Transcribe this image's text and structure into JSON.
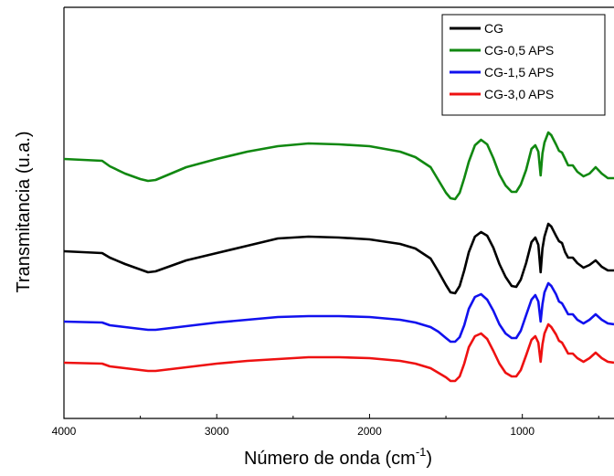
{
  "chart_data": {
    "type": "line",
    "title": "",
    "xlabel": "Número de onda (cm",
    "xlabel_sup": "-1",
    "xlabel_close": ")",
    "ylabel": "Transmitancia (u.a.)",
    "xlim": [
      4000,
      400
    ],
    "x_reversed": true,
    "x_ticks": [
      4000,
      3000,
      2000,
      1000
    ],
    "x_tick_labels": [
      "4000",
      "3000",
      "2000",
      "1000"
    ],
    "y_ticks_shown": false,
    "grid": false,
    "legend_position": "top-right",
    "series": [
      {
        "name": "CG",
        "color": "#000000",
        "points": [
          [
            4000,
            275
          ],
          [
            3750,
            277
          ],
          [
            3700,
            282
          ],
          [
            3600,
            289
          ],
          [
            3500,
            295
          ],
          [
            3450,
            298
          ],
          [
            3400,
            297
          ],
          [
            3300,
            291
          ],
          [
            3200,
            285
          ],
          [
            3000,
            277
          ],
          [
            2800,
            269
          ],
          [
            2600,
            261
          ],
          [
            2400,
            259
          ],
          [
            2200,
            260
          ],
          [
            2000,
            262
          ],
          [
            1800,
            267
          ],
          [
            1700,
            272
          ],
          [
            1600,
            283
          ],
          [
            1550,
            297
          ],
          [
            1500,
            312
          ],
          [
            1470,
            320
          ],
          [
            1440,
            321
          ],
          [
            1410,
            313
          ],
          [
            1380,
            296
          ],
          [
            1350,
            276
          ],
          [
            1310,
            259
          ],
          [
            1270,
            254
          ],
          [
            1230,
            258
          ],
          [
            1190,
            271
          ],
          [
            1150,
            289
          ],
          [
            1110,
            303
          ],
          [
            1070,
            313
          ],
          [
            1040,
            314
          ],
          [
            1010,
            306
          ],
          [
            975,
            288
          ],
          [
            940,
            265
          ],
          [
            915,
            260
          ],
          [
            895,
            268
          ],
          [
            880,
            298
          ],
          [
            868,
            272
          ],
          [
            855,
            259
          ],
          [
            830,
            245
          ],
          [
            810,
            248
          ],
          [
            780,
            258
          ],
          [
            760,
            264
          ],
          [
            740,
            266
          ],
          [
            720,
            276
          ],
          [
            700,
            282
          ],
          [
            670,
            282
          ],
          [
            640,
            288
          ],
          [
            600,
            293
          ],
          [
            560,
            290
          ],
          [
            520,
            285
          ],
          [
            480,
            292
          ],
          [
            440,
            296
          ],
          [
            400,
            296
          ]
        ]
      },
      {
        "name": "CG-0,5 APS",
        "color": "#118811",
        "points": [
          [
            4000,
            174
          ],
          [
            3750,
            176
          ],
          [
            3700,
            182
          ],
          [
            3600,
            190
          ],
          [
            3500,
            196
          ],
          [
            3450,
            198
          ],
          [
            3400,
            197
          ],
          [
            3300,
            190
          ],
          [
            3200,
            183
          ],
          [
            3000,
            174
          ],
          [
            2800,
            166
          ],
          [
            2600,
            160
          ],
          [
            2400,
            157
          ],
          [
            2200,
            158
          ],
          [
            2000,
            160
          ],
          [
            1800,
            166
          ],
          [
            1700,
            172
          ],
          [
            1600,
            183
          ],
          [
            1550,
            197
          ],
          [
            1500,
            211
          ],
          [
            1470,
            217
          ],
          [
            1440,
            218
          ],
          [
            1410,
            211
          ],
          [
            1380,
            195
          ],
          [
            1350,
            177
          ],
          [
            1310,
            159
          ],
          [
            1270,
            153
          ],
          [
            1230,
            158
          ],
          [
            1190,
            173
          ],
          [
            1150,
            191
          ],
          [
            1110,
            203
          ],
          [
            1070,
            210
          ],
          [
            1040,
            210
          ],
          [
            1010,
            202
          ],
          [
            975,
            186
          ],
          [
            940,
            163
          ],
          [
            915,
            159
          ],
          [
            895,
            166
          ],
          [
            880,
            192
          ],
          [
            868,
            168
          ],
          [
            855,
            156
          ],
          [
            830,
            145
          ],
          [
            810,
            148
          ],
          [
            780,
            158
          ],
          [
            760,
            165
          ],
          [
            740,
            167
          ],
          [
            720,
            174
          ],
          [
            700,
            181
          ],
          [
            670,
            181
          ],
          [
            640,
            188
          ],
          [
            600,
            193
          ],
          [
            560,
            190
          ],
          [
            520,
            183
          ],
          [
            480,
            190
          ],
          [
            440,
            195
          ],
          [
            400,
            195
          ]
        ]
      },
      {
        "name": "CG-1,5 APS",
        "color": "#1111ee",
        "points": [
          [
            4000,
            352
          ],
          [
            3750,
            353
          ],
          [
            3700,
            356
          ],
          [
            3600,
            358
          ],
          [
            3500,
            360
          ],
          [
            3450,
            361
          ],
          [
            3400,
            361
          ],
          [
            3300,
            359
          ],
          [
            3200,
            357
          ],
          [
            3000,
            353
          ],
          [
            2800,
            350
          ],
          [
            2600,
            347
          ],
          [
            2400,
            346
          ],
          [
            2200,
            346
          ],
          [
            2000,
            347
          ],
          [
            1800,
            350
          ],
          [
            1700,
            353
          ],
          [
            1600,
            358
          ],
          [
            1550,
            363
          ],
          [
            1500,
            370
          ],
          [
            1470,
            374
          ],
          [
            1440,
            374
          ],
          [
            1410,
            369
          ],
          [
            1380,
            356
          ],
          [
            1350,
            338
          ],
          [
            1310,
            325
          ],
          [
            1270,
            322
          ],
          [
            1230,
            328
          ],
          [
            1190,
            340
          ],
          [
            1150,
            355
          ],
          [
            1110,
            365
          ],
          [
            1070,
            370
          ],
          [
            1040,
            370
          ],
          [
            1010,
            362
          ],
          [
            975,
            345
          ],
          [
            940,
            328
          ],
          [
            915,
            323
          ],
          [
            895,
            330
          ],
          [
            880,
            352
          ],
          [
            868,
            333
          ],
          [
            855,
            320
          ],
          [
            830,
            310
          ],
          [
            810,
            313
          ],
          [
            780,
            322
          ],
          [
            760,
            330
          ],
          [
            740,
            332
          ],
          [
            720,
            338
          ],
          [
            700,
            344
          ],
          [
            670,
            344
          ],
          [
            640,
            350
          ],
          [
            600,
            354
          ],
          [
            560,
            350
          ],
          [
            520,
            344
          ],
          [
            480,
            350
          ],
          [
            440,
            354
          ],
          [
            400,
            355
          ]
        ]
      },
      {
        "name": "CG-3,0 APS",
        "color": "#ee1111",
        "points": [
          [
            4000,
            397
          ],
          [
            3750,
            398
          ],
          [
            3700,
            401
          ],
          [
            3600,
            403
          ],
          [
            3500,
            405
          ],
          [
            3450,
            406
          ],
          [
            3400,
            406
          ],
          [
            3300,
            404
          ],
          [
            3200,
            402
          ],
          [
            3000,
            398
          ],
          [
            2800,
            395
          ],
          [
            2600,
            393
          ],
          [
            2400,
            391
          ],
          [
            2200,
            391
          ],
          [
            2000,
            392
          ],
          [
            1800,
            395
          ],
          [
            1700,
            398
          ],
          [
            1600,
            403
          ],
          [
            1550,
            408
          ],
          [
            1500,
            413
          ],
          [
            1470,
            417
          ],
          [
            1440,
            417
          ],
          [
            1410,
            412
          ],
          [
            1380,
            398
          ],
          [
            1350,
            380
          ],
          [
            1310,
            368
          ],
          [
            1270,
            365
          ],
          [
            1230,
            371
          ],
          [
            1190,
            384
          ],
          [
            1150,
            398
          ],
          [
            1110,
            408
          ],
          [
            1070,
            412
          ],
          [
            1040,
            412
          ],
          [
            1010,
            405
          ],
          [
            975,
            389
          ],
          [
            940,
            372
          ],
          [
            915,
            368
          ],
          [
            895,
            375
          ],
          [
            880,
            396
          ],
          [
            868,
            377
          ],
          [
            855,
            365
          ],
          [
            830,
            355
          ],
          [
            810,
            358
          ],
          [
            780,
            366
          ],
          [
            760,
            373
          ],
          [
            740,
            375
          ],
          [
            720,
            381
          ],
          [
            700,
            387
          ],
          [
            670,
            387
          ],
          [
            640,
            392
          ],
          [
            600,
            396
          ],
          [
            560,
            392
          ],
          [
            520,
            386
          ],
          [
            480,
            392
          ],
          [
            440,
            396
          ],
          [
            400,
            397
          ]
        ]
      }
    ]
  }
}
